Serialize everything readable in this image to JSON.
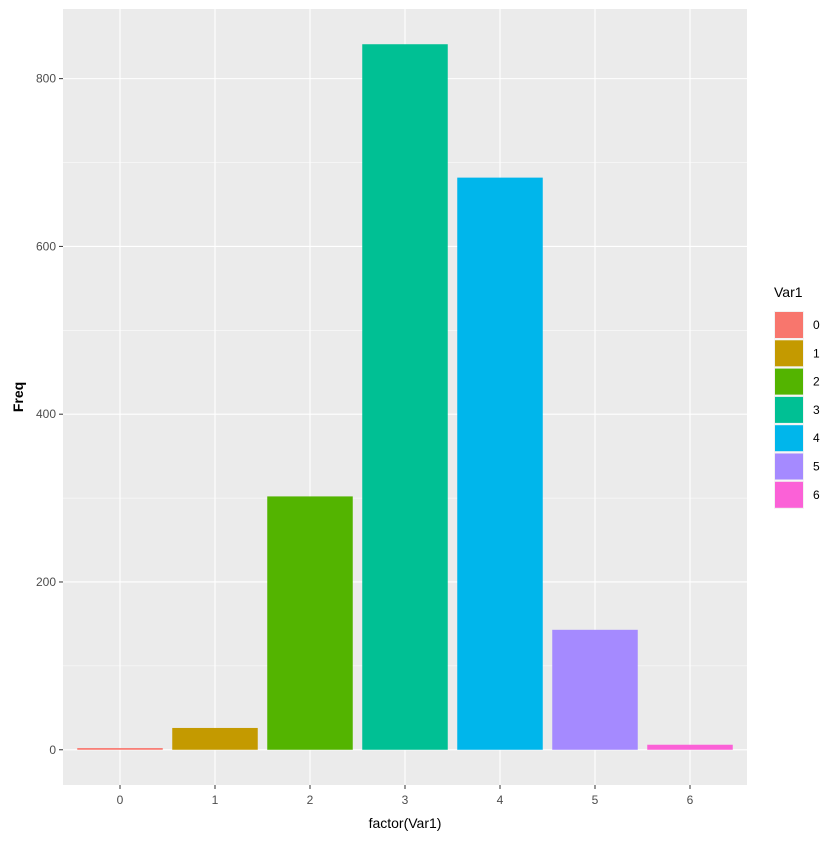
{
  "chart_data": {
    "type": "bar",
    "categories": [
      "0",
      "1",
      "2",
      "3",
      "4",
      "5",
      "6"
    ],
    "values": [
      2,
      26,
      302,
      841,
      682,
      143,
      6
    ],
    "colors": [
      "#F8766D",
      "#C49A00",
      "#53B400",
      "#00C094",
      "#00B6EB",
      "#A58AFF",
      "#FB61D7"
    ],
    "xlabel": "factor(Var1)",
    "ylabel": "Freq",
    "ylim": [
      -42,
      883
    ],
    "yticks": [
      0,
      200,
      400,
      600,
      800
    ],
    "yticks_minor": [
      100,
      300,
      500,
      700
    ],
    "grid": true,
    "legend": {
      "title": "Var1",
      "position": "right",
      "labels": [
        "0",
        "1",
        "2",
        "3",
        "4",
        "5",
        "6"
      ]
    }
  },
  "theme": {
    "panel_background": "#EBEBEB",
    "grid_color": "#FFFFFF",
    "tick_text_color": "#4D4D4D"
  }
}
